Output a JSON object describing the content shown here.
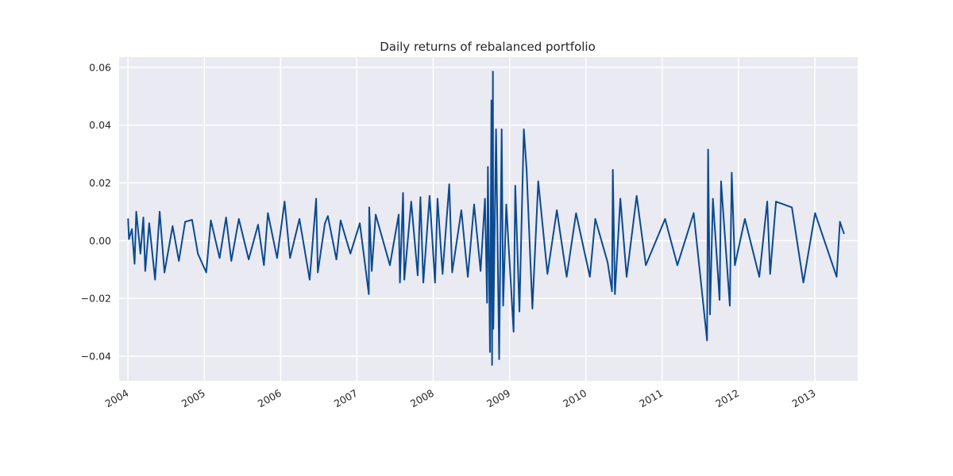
{
  "chart_data": {
    "type": "line",
    "title": "Daily returns of rebalanced portfolio",
    "xlabel": "",
    "ylabel": "",
    "xlim": [
      "2003-11-20",
      "2013-07-25"
    ],
    "ylim": [
      -0.0485,
      0.0635
    ],
    "y_ticks": [
      -0.04,
      -0.02,
      0.0,
      0.02,
      0.04,
      0.06
    ],
    "y_tick_labels": [
      "−0.04",
      "−0.02",
      "0.00",
      "0.02",
      "0.04",
      "0.06"
    ],
    "x_ticks": [
      "2004-01-01",
      "2005-01-01",
      "2006-01-01",
      "2007-01-01",
      "2008-01-01",
      "2009-01-01",
      "2010-01-01",
      "2011-01-01",
      "2012-01-01",
      "2013-01-01"
    ],
    "x_tick_labels": [
      "2004",
      "2005",
      "2006",
      "2007",
      "2008",
      "2009",
      "2010",
      "2011",
      "2012",
      "2013"
    ],
    "x_tick_rotation_deg": 30,
    "grid": true,
    "style": "seaborn-darkgrid",
    "colors": {
      "line": "#0b4a91",
      "plot_bg": "#eaeaf2",
      "grid": "#ffffff",
      "text": "#262626"
    },
    "series": [
      {
        "color": "#0b4a91",
        "points": [
          [
            "2004-01-02",
            0.0075
          ],
          [
            "2004-01-06",
            0.0005
          ],
          [
            "2004-01-20",
            0.004
          ],
          [
            "2004-02-02",
            -0.008
          ],
          [
            "2004-02-10",
            0.01
          ],
          [
            "2004-03-01",
            -0.0045
          ],
          [
            "2004-03-15",
            0.008
          ],
          [
            "2004-03-24",
            -0.0105
          ],
          [
            "2004-04-12",
            0.006
          ],
          [
            "2004-05-10",
            -0.0135
          ],
          [
            "2004-06-01",
            0.01
          ],
          [
            "2004-06-24",
            -0.011
          ],
          [
            "2004-08-02",
            0.005
          ],
          [
            "2004-09-01",
            -0.007
          ],
          [
            "2004-10-01",
            0.0065
          ],
          [
            "2004-11-03",
            0.0072
          ],
          [
            "2004-12-01",
            -0.0045
          ],
          [
            "2005-01-10",
            -0.011
          ],
          [
            "2005-02-01",
            0.007
          ],
          [
            "2005-03-15",
            -0.006
          ],
          [
            "2005-04-15",
            0.008
          ],
          [
            "2005-05-10",
            -0.007
          ],
          [
            "2005-06-15",
            0.0075
          ],
          [
            "2005-08-01",
            -0.0065
          ],
          [
            "2005-09-15",
            0.0055
          ],
          [
            "2005-10-13",
            -0.0085
          ],
          [
            "2005-11-01",
            0.0095
          ],
          [
            "2005-12-15",
            -0.006
          ],
          [
            "2006-01-20",
            0.0135
          ],
          [
            "2006-02-15",
            -0.006
          ],
          [
            "2006-04-01",
            0.0075
          ],
          [
            "2006-05-20",
            -0.0135
          ],
          [
            "2006-06-20",
            0.0145
          ],
          [
            "2006-06-28",
            -0.011
          ],
          [
            "2006-08-01",
            0.006
          ],
          [
            "2006-08-15",
            0.0085
          ],
          [
            "2006-09-25",
            -0.0065
          ],
          [
            "2006-10-15",
            0.007
          ],
          [
            "2006-12-01",
            -0.0045
          ],
          [
            "2007-01-15",
            0.006
          ],
          [
            "2007-02-27",
            -0.0185
          ],
          [
            "2007-03-01",
            0.0115
          ],
          [
            "2007-03-13",
            -0.0105
          ],
          [
            "2007-04-01",
            0.009
          ],
          [
            "2007-06-08",
            -0.0085
          ],
          [
            "2007-07-20",
            0.009
          ],
          [
            "2007-07-26",
            -0.0145
          ],
          [
            "2007-08-10",
            0.0165
          ],
          [
            "2007-08-16",
            -0.0135
          ],
          [
            "2007-09-18",
            0.0135
          ],
          [
            "2007-10-19",
            -0.012
          ],
          [
            "2007-11-01",
            0.015
          ],
          [
            "2007-11-15",
            -0.0145
          ],
          [
            "2007-12-15",
            0.0155
          ],
          [
            "2008-01-10",
            -0.0145
          ],
          [
            "2008-01-22",
            0.0145
          ],
          [
            "2008-02-15",
            -0.0115
          ],
          [
            "2008-03-18",
            0.0195
          ],
          [
            "2008-04-01",
            -0.011
          ],
          [
            "2008-05-15",
            0.0105
          ],
          [
            "2008-06-15",
            -0.0125
          ],
          [
            "2008-07-15",
            0.0125
          ],
          [
            "2008-08-15",
            -0.0105
          ],
          [
            "2008-09-05",
            0.0145
          ],
          [
            "2008-09-15",
            -0.0215
          ],
          [
            "2008-09-19",
            0.0255
          ],
          [
            "2008-09-29",
            -0.0385
          ],
          [
            "2008-10-06",
            0.0485
          ],
          [
            "2008-10-09",
            -0.043
          ],
          [
            "2008-10-13",
            0.0585
          ],
          [
            "2008-10-15",
            -0.0305
          ],
          [
            "2008-10-28",
            0.0385
          ],
          [
            "2008-11-12",
            -0.041
          ],
          [
            "2008-11-24",
            0.0385
          ],
          [
            "2008-12-01",
            -0.0225
          ],
          [
            "2008-12-16",
            0.0125
          ],
          [
            "2009-01-20",
            -0.0315
          ],
          [
            "2009-01-28",
            0.019
          ],
          [
            "2009-02-17",
            -0.0245
          ],
          [
            "2009-03-10",
            0.0385
          ],
          [
            "2009-03-23",
            0.025
          ],
          [
            "2009-04-20",
            -0.0235
          ],
          [
            "2009-05-18",
            0.0205
          ],
          [
            "2009-07-01",
            -0.0115
          ],
          [
            "2009-08-15",
            0.0105
          ],
          [
            "2009-10-01",
            -0.0125
          ],
          [
            "2009-11-15",
            0.0095
          ],
          [
            "2010-01-20",
            -0.0125
          ],
          [
            "2010-02-15",
            0.0075
          ],
          [
            "2010-04-15",
            -0.0075
          ],
          [
            "2010-05-06",
            -0.0175
          ],
          [
            "2010-05-10",
            0.0245
          ],
          [
            "2010-05-20",
            -0.0185
          ],
          [
            "2010-06-15",
            0.0145
          ],
          [
            "2010-07-15",
            -0.0125
          ],
          [
            "2010-09-01",
            0.0155
          ],
          [
            "2010-10-15",
            -0.0085
          ],
          [
            "2011-01-15",
            0.0075
          ],
          [
            "2011-03-15",
            -0.0085
          ],
          [
            "2011-06-01",
            0.0095
          ],
          [
            "2011-08-04",
            -0.0345
          ],
          [
            "2011-08-09",
            0.0315
          ],
          [
            "2011-08-18",
            -0.0255
          ],
          [
            "2011-09-01",
            0.0145
          ],
          [
            "2011-10-03",
            -0.0205
          ],
          [
            "2011-10-10",
            0.0205
          ],
          [
            "2011-11-21",
            -0.0225
          ],
          [
            "2011-11-30",
            0.0235
          ],
          [
            "2011-12-15",
            -0.0085
          ],
          [
            "2012-02-01",
            0.0075
          ],
          [
            "2012-04-10",
            -0.0125
          ],
          [
            "2012-05-18",
            0.0135
          ],
          [
            "2012-06-01",
            -0.0115
          ],
          [
            "2012-06-29",
            0.0135
          ],
          [
            "2012-09-13",
            0.0115
          ],
          [
            "2012-11-07",
            -0.0145
          ],
          [
            "2013-01-02",
            0.0095
          ],
          [
            "2013-04-15",
            -0.0125
          ],
          [
            "2013-05-01",
            0.0065
          ],
          [
            "2013-05-20",
            0.0025
          ]
        ]
      }
    ]
  }
}
